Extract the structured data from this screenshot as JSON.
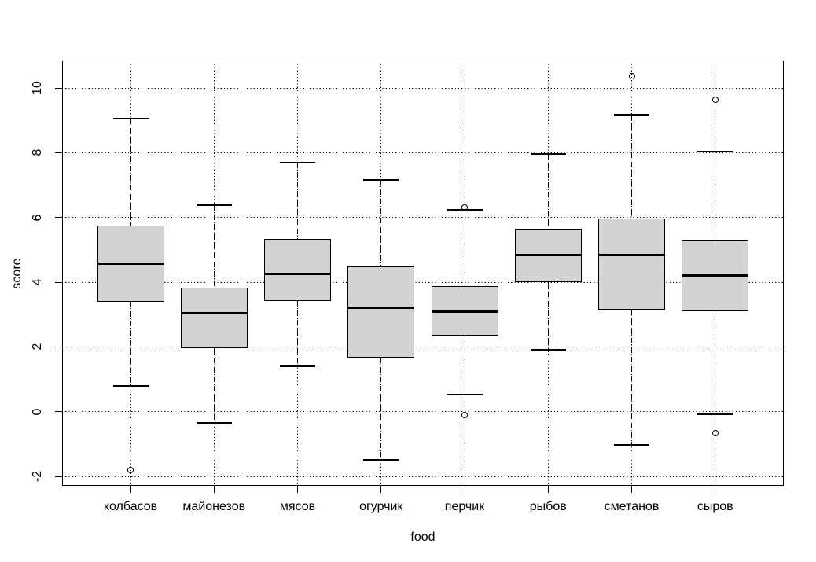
{
  "figure": {
    "background_color": "#ffffff",
    "box_fill_color": "#d3d3d3",
    "line_color": "#000000"
  },
  "chart_data": {
    "type": "boxplot",
    "title": "",
    "xlabel": "food",
    "ylabel": "score",
    "y_ticks": [
      -2,
      0,
      2,
      4,
      6,
      8,
      10
    ],
    "y_tick_labels": [
      "-2",
      "0",
      "2",
      "4",
      "6",
      "8",
      "10"
    ],
    "ylim": [
      -2.29,
      10.85
    ],
    "grid": {
      "horizontal": true,
      "vertical": true,
      "style": "dotted"
    },
    "whisker_line_style": "dashed",
    "categories": [
      "колбасов",
      "майонезов",
      "мясов",
      "огурчик",
      "перчик",
      "рыбов",
      "сметанов",
      "сыров"
    ],
    "series": [
      {
        "category": "колбасов",
        "whisker_low": 0.8,
        "q1": 3.4,
        "median": 4.58,
        "q3": 5.76,
        "whisker_high": 9.05,
        "outliers": [
          -1.8
        ]
      },
      {
        "category": "майонезов",
        "whisker_low": -0.35,
        "q1": 1.97,
        "median": 3.04,
        "q3": 3.82,
        "whisker_high": 6.38,
        "outliers": []
      },
      {
        "category": "мясов",
        "whisker_low": 1.4,
        "q1": 3.41,
        "median": 4.25,
        "q3": 5.34,
        "whisker_high": 7.7,
        "outliers": []
      },
      {
        "category": "огурчик",
        "whisker_low": -1.48,
        "q1": 1.68,
        "median": 3.2,
        "q3": 4.49,
        "whisker_high": 7.15,
        "outliers": []
      },
      {
        "category": "перчик",
        "whisker_low": 0.52,
        "q1": 2.35,
        "median": 3.1,
        "q3": 3.88,
        "whisker_high": 6.24,
        "outliers": [
          6.32,
          -0.1
        ]
      },
      {
        "category": "рыбов",
        "whisker_low": 1.9,
        "q1": 4.0,
        "median": 4.85,
        "q3": 5.65,
        "whisker_high": 7.95,
        "outliers": []
      },
      {
        "category": "сметанов",
        "whisker_low": -1.02,
        "q1": 3.16,
        "median": 4.84,
        "q3": 5.98,
        "whisker_high": 9.17,
        "outliers": [
          10.36
        ]
      },
      {
        "category": "сыров",
        "whisker_low": -0.08,
        "q1": 3.1,
        "median": 4.2,
        "q3": 5.3,
        "whisker_high": 8.03,
        "outliers": [
          9.63,
          -0.67
        ]
      }
    ]
  }
}
